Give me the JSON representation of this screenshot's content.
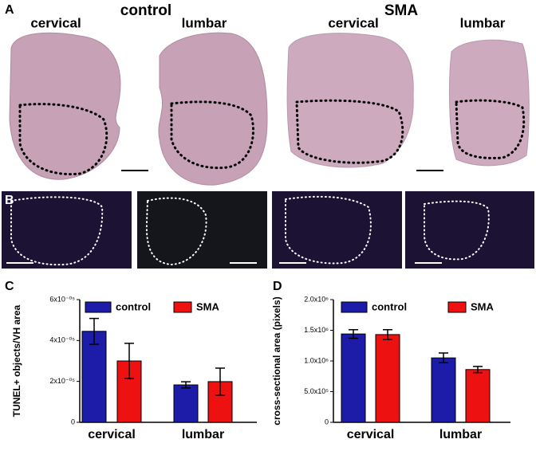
{
  "figure": {
    "panel_labels": [
      "A",
      "B",
      "C",
      "D"
    ],
    "panel_a": [
      {
        "title": "control",
        "columns": [
          "cervical",
          "lumbar"
        ]
      },
      {
        "title": "SMA",
        "columns": [
          "cervical",
          "lumbar"
        ]
      }
    ]
  },
  "chart_data": [
    {
      "type": "bar",
      "y_label": "TUNEL+ objects/VH area",
      "categories": [
        "cervical",
        "lumbar"
      ],
      "series": [
        {
          "name": "control",
          "color": "#1c1ca8",
          "values": [
            4.45e-05,
            1.83e-05
          ],
          "errors": [
            6.3e-06,
            1.5e-06
          ]
        },
        {
          "name": "SMA",
          "color": "#ee1111",
          "values": [
            3e-05,
            1.99e-05
          ],
          "errors": [
            8.6e-06,
            6.6e-06
          ]
        }
      ],
      "ylim": [
        0,
        6e-05
      ],
      "yticks": [
        0,
        {
          "value": 2e-05,
          "label": "2x10⁻⁰⁵"
        },
        {
          "value": 4e-05,
          "label": "4x10⁻⁰⁵"
        },
        {
          "value": 6e-05,
          "label": "6x10⁻⁰⁵"
        }
      ]
    },
    {
      "type": "bar",
      "y_label": "cross-sectional area (pixels)",
      "categories": [
        "cervical",
        "lumbar"
      ],
      "series": [
        {
          "name": "control",
          "color": "#1c1ca8",
          "values": [
            1440000,
            1050000
          ],
          "errors": [
            70000,
            80000
          ]
        },
        {
          "name": "SMA",
          "color": "#ee1111",
          "values": [
            1430000,
            860000
          ],
          "errors": [
            80000,
            50000
          ]
        }
      ],
      "ylim": [
        0,
        2000000
      ],
      "yticks": [
        0,
        {
          "value": 500000,
          "label": "5.0x10⁵"
        },
        {
          "value": 1000000,
          "label": "1.0x10⁶"
        },
        {
          "value": 1500000,
          "label": "1.5x10⁶"
        },
        {
          "value": 2000000,
          "label": "2.0x10⁶"
        }
      ]
    }
  ]
}
